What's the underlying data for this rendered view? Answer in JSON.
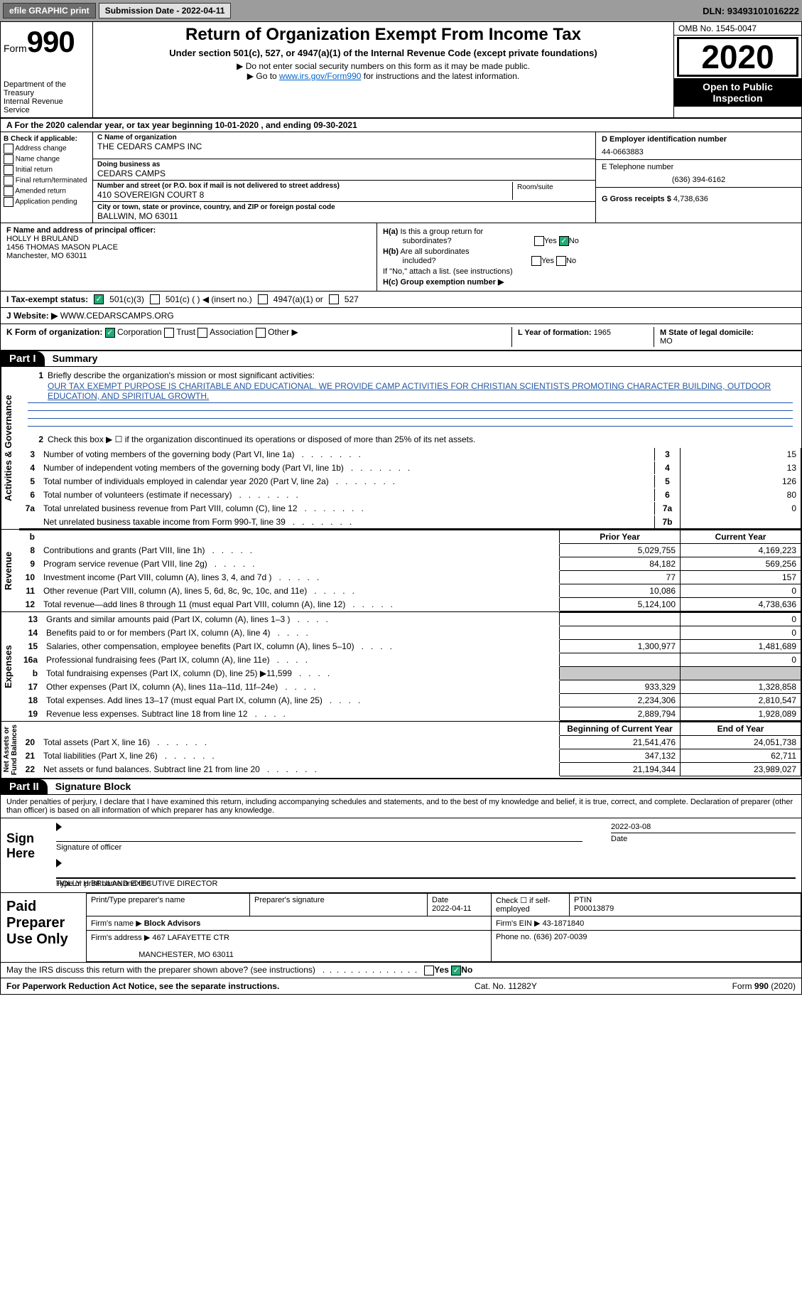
{
  "toolbar": {
    "efile": "efile GRAPHIC print",
    "sub_label": "Submission Date - ",
    "sub_date": "2022-04-11",
    "dln_label": "DLN: ",
    "dln": "93493101016222"
  },
  "header": {
    "form_label": "Form",
    "form_num": "990",
    "dept": "Department of the Treasury\nInternal Revenue Service",
    "title": "Return of Organization Exempt From Income Tax",
    "subtitle": "Under section 501(c), 527, or 4947(a)(1) of the Internal Revenue Code (except private foundations)",
    "note1": "▶ Do not enter social security numbers on this form as it may be made public.",
    "note2_pre": "▶ Go to ",
    "note2_link": "www.irs.gov/Form990",
    "note2_post": " for instructions and the latest information.",
    "omb": "OMB No. 1545-0047",
    "year": "2020",
    "open": "Open to Public Inspection"
  },
  "sec_a": "A For the 2020 calendar year, or tax year beginning 10-01-2020     , and ending 09-30-2021",
  "sec_b": {
    "label": "B Check if applicable:",
    "addr": "Address change",
    "name": "Name change",
    "init": "Initial return",
    "final": "Final return/terminated",
    "amend": "Amended return",
    "app": "Application pending"
  },
  "sec_c": {
    "name_lbl": "C Name of organization",
    "name": "THE CEDARS CAMPS INC",
    "dba_lbl": "Doing business as",
    "dba": "CEDARS CAMPS",
    "street_lbl": "Number and street (or P.O. box if mail is not delivered to street address)",
    "street": "410 SOVEREIGN COURT 8",
    "room_lbl": "Room/suite",
    "city_lbl": "City or town, state or province, country, and ZIP or foreign postal code",
    "city": "BALLWIN, MO  63011"
  },
  "sec_d": {
    "ein_lbl": "D Employer identification number",
    "ein": "44-0663883",
    "tel_lbl": "E Telephone number",
    "tel": "(636) 394-6162",
    "g_lbl": "G Gross receipts $ ",
    "g_val": "4,738,636"
  },
  "sec_f": {
    "lbl": "F Name and address of principal officer:",
    "name": "HOLLY H BRULAND",
    "addr1": "1456 THOMAS MASON PLACE",
    "addr2": "Manchester, MO  63011"
  },
  "sec_h": {
    "a": "H(a)  Is this a group return for subordinates?",
    "b": "H(b)  Are all subordinates included?",
    "bnote": "If \"No,\" attach a list. (see instructions)",
    "c": "H(c)  Group exemption number ▶",
    "yes": "Yes",
    "no": "No"
  },
  "row_i": {
    "lbl": "I    Tax-exempt status:",
    "o1": "501(c)(3)",
    "o2": "501(c) (   ) ◀ (insert no.)",
    "o3": "4947(a)(1) or",
    "o4": "527"
  },
  "row_j": {
    "lbl": "J   Website: ▶ ",
    "val": "WWW.CEDARSCAMPS.ORG"
  },
  "row_k": {
    "lbl": "K Form of organization:",
    "o1": "Corporation",
    "o2": "Trust",
    "o3": "Association",
    "o4": "Other ▶"
  },
  "row_l": {
    "lbl": "L Year of formation: ",
    "val": "1965"
  },
  "row_m": {
    "lbl": "M State of legal domicile: ",
    "val": "MO"
  },
  "part1": {
    "hdr": "Part I",
    "title": "Summary",
    "q1": "Briefly describe the organization's mission or most significant activities:",
    "q1a": "OUR TAX EXEMPT PURPOSE IS CHARITABLE AND EDUCATIONAL. WE PROVIDE CAMP ACTIVITIES FOR CHRISTIAN SCIENTISTS PROMOTING CHARACTER BUILDING, OUTDOOR EDUCATION, AND SPIRITUAL GROWTH.",
    "q2": "Check this box ▶ ☐  if the organization discontinued its operations or disposed of more than 25% of its net assets.",
    "vlabel_ag": "Activities & Governance",
    "vlabel_rev": "Revenue",
    "vlabel_exp": "Expenses",
    "vlabel_na": "Net Assets or Fund Balances",
    "lines_agov": [
      {
        "n": "3",
        "t": "Number of voting members of the governing body (Part VI, line 1a)",
        "b": "3",
        "v": "15"
      },
      {
        "n": "4",
        "t": "Number of independent voting members of the governing body (Part VI, line 1b)",
        "b": "4",
        "v": "13"
      },
      {
        "n": "5",
        "t": "Total number of individuals employed in calendar year 2020 (Part V, line 2a)",
        "b": "5",
        "v": "126"
      },
      {
        "n": "6",
        "t": "Total number of volunteers (estimate if necessary)",
        "b": "6",
        "v": "80"
      },
      {
        "n": "7a",
        "t": "Total unrelated business revenue from Part VIII, column (C), line 12",
        "b": "7a",
        "v": "0"
      },
      {
        "n": "",
        "t": "Net unrelated business taxable income from Form 990-T, line 39",
        "b": "7b",
        "v": ""
      }
    ],
    "th_py": "Prior Year",
    "th_cy": "Current Year",
    "lines_rev": [
      {
        "n": "8",
        "t": "Contributions and grants (Part VIII, line 1h)",
        "py": "5,029,755",
        "cy": "4,169,223"
      },
      {
        "n": "9",
        "t": "Program service revenue (Part VIII, line 2g)",
        "py": "84,182",
        "cy": "569,256"
      },
      {
        "n": "10",
        "t": "Investment income (Part VIII, column (A), lines 3, 4, and 7d )",
        "py": "77",
        "cy": "157"
      },
      {
        "n": "11",
        "t": "Other revenue (Part VIII, column (A), lines 5, 6d, 8c, 9c, 10c, and 11e)",
        "py": "10,086",
        "cy": "0"
      },
      {
        "n": "12",
        "t": "Total revenue—add lines 8 through 11 (must equal Part VIII, column (A), line 12)",
        "py": "5,124,100",
        "cy": "4,738,636"
      }
    ],
    "lines_exp": [
      {
        "n": "13",
        "t": "Grants and similar amounts paid (Part IX, column (A), lines 1–3 )",
        "py": "",
        "cy": "0"
      },
      {
        "n": "14",
        "t": "Benefits paid to or for members (Part IX, column (A), line 4)",
        "py": "",
        "cy": "0"
      },
      {
        "n": "15",
        "t": "Salaries, other compensation, employee benefits (Part IX, column (A), lines 5–10)",
        "py": "1,300,977",
        "cy": "1,481,689"
      },
      {
        "n": "16a",
        "t": "Professional fundraising fees (Part IX, column (A), line 11e)",
        "py": "",
        "cy": "0"
      },
      {
        "n": "b",
        "t": "Total fundraising expenses (Part IX, column (D), line 25) ▶11,599",
        "py": "GREY",
        "cy": "GREY"
      },
      {
        "n": "17",
        "t": "Other expenses (Part IX, column (A), lines 11a–11d, 11f–24e)",
        "py": "933,329",
        "cy": "1,328,858"
      },
      {
        "n": "18",
        "t": "Total expenses. Add lines 13–17 (must equal Part IX, column (A), line 25)",
        "py": "2,234,306",
        "cy": "2,810,547"
      },
      {
        "n": "19",
        "t": "Revenue less expenses. Subtract line 18 from line 12",
        "py": "2,889,794",
        "cy": "1,928,089"
      }
    ],
    "th_bcy": "Beginning of Current Year",
    "th_eoy": "End of Year",
    "lines_na": [
      {
        "n": "20",
        "t": "Total assets (Part X, line 16)",
        "py": "21,541,476",
        "cy": "24,051,738"
      },
      {
        "n": "21",
        "t": "Total liabilities (Part X, line 26)",
        "py": "347,132",
        "cy": "62,711"
      },
      {
        "n": "22",
        "t": "Net assets or fund balances. Subtract line 21 from line 20",
        "py": "21,194,344",
        "cy": "23,989,027"
      }
    ]
  },
  "part2": {
    "hdr": "Part II",
    "title": "Signature Block",
    "decl": "Under penalties of perjury, I declare that I have examined this return, including accompanying schedules and statements, and to the best of my knowledge and belief, it is true, correct, and complete. Declaration of preparer (other than officer) is based on all information of which preparer has any knowledge.",
    "sign_here": "Sign Here",
    "sig_officer_lbl": "Signature of officer",
    "sig_date": "2022-03-08",
    "date_lbl": "Date",
    "sig_name": "HOLLY H BRULAND  EXECUTIVE DIRECTOR",
    "sig_name_lbl": "Type or print name and title",
    "paid": "Paid Preparer Use Only",
    "p_name_lbl": "Print/Type preparer's name",
    "p_sig_lbl": "Preparer's signature",
    "p_date_lbl": "Date",
    "p_date": "2022-04-11",
    "p_check_lbl": "Check ☐ if self-employed",
    "p_ptin_lbl": "PTIN",
    "p_ptin": "P00013879",
    "firm_name_lbl": "Firm's name     ▶ ",
    "firm_name": "Block Advisors",
    "firm_ein_lbl": "Firm's EIN ▶ ",
    "firm_ein": "43-1871840",
    "firm_addr_lbl": "Firm's address ▶ ",
    "firm_addr": "467 LAFAYETTE CTR",
    "firm_city": "MANCHESTER, MO  63011",
    "firm_phone_lbl": "Phone no. ",
    "firm_phone": "(636) 207-0039",
    "may": "May the IRS discuss this return with the preparer shown above? (see instructions)",
    "may_yes": "Yes",
    "may_no": "No"
  },
  "footer": {
    "left": "For Paperwork Reduction Act Notice, see the separate instructions.",
    "mid": "Cat. No. 11282Y",
    "right": "Form 990 (2020)"
  }
}
